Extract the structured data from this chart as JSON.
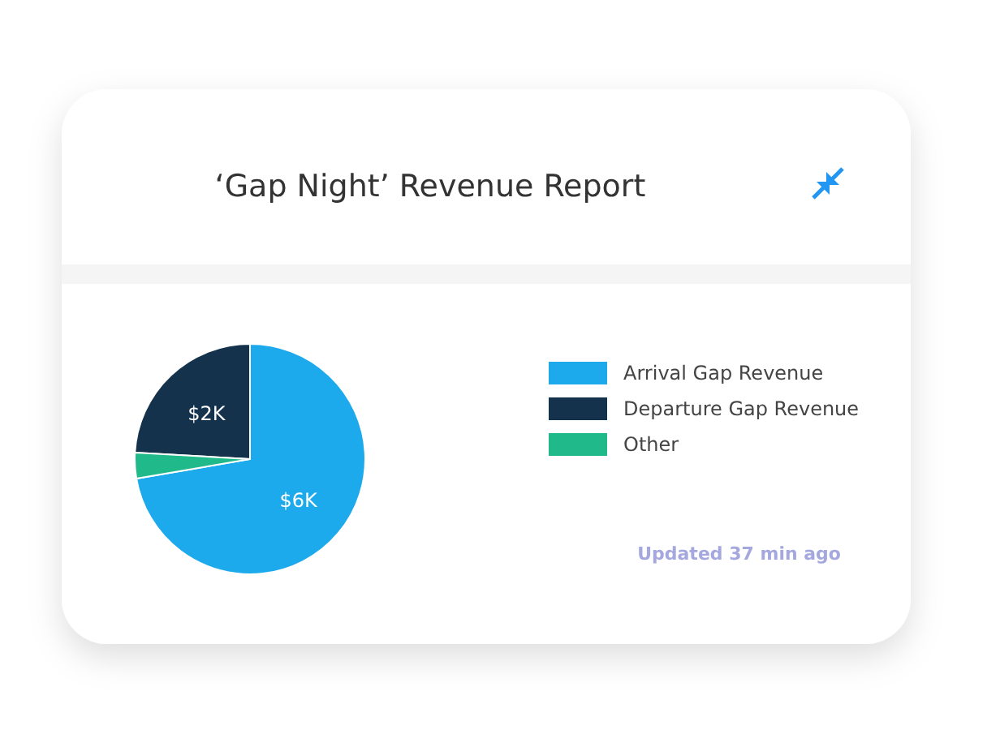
{
  "chart_data": {
    "type": "pie",
    "title": "‘Gap Night’ Revenue Report",
    "categories": [
      "Arrival Gap Revenue",
      "Departure Gap Revenue",
      "Other"
    ],
    "values": [
      6,
      2,
      0.3
    ],
    "colors": [
      "#1daaec",
      "#14324b",
      "#1fb98a"
    ],
    "value_labels": [
      "$6K",
      "$2K",
      null
    ],
    "legend": "right",
    "annotations": [
      "Updated 37 min ago"
    ]
  }
}
